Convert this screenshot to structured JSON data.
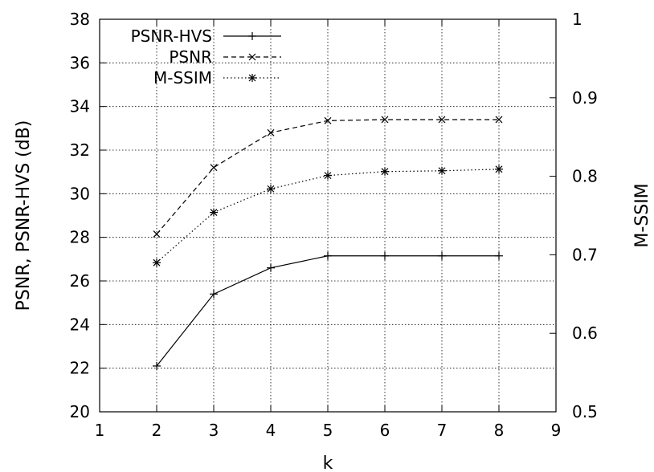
{
  "chart_data": {
    "type": "line",
    "title": "",
    "xlabel": "k",
    "ylabel": "PSNR, PSNR-HVS (dB)",
    "y2label": "M-SSIM",
    "xlim": [
      1,
      9
    ],
    "ylim": [
      20,
      38
    ],
    "y2lim": [
      0.5,
      1
    ],
    "xticks": [
      "1",
      "2",
      "3",
      "4",
      "5",
      "6",
      "7",
      "8",
      "9"
    ],
    "yticks": [
      "20",
      "22",
      "24",
      "26",
      "28",
      "30",
      "32",
      "34",
      "36",
      "38"
    ],
    "y2ticks": [
      "0.5",
      "0.6",
      "0.7",
      "0.8",
      "0.9",
      "1"
    ],
    "grid": true,
    "legend_position": "top-left",
    "x": [
      2,
      3,
      4,
      5,
      6,
      7,
      8
    ],
    "series": [
      {
        "name": "PSNR-HVS",
        "axis": "left",
        "marker": "plus",
        "dash": "solid",
        "values": [
          22.1,
          25.4,
          26.6,
          27.15,
          27.15,
          27.15,
          27.15
        ]
      },
      {
        "name": "PSNR",
        "axis": "left",
        "marker": "cross",
        "dash": "dashed",
        "values": [
          28.15,
          31.2,
          32.8,
          33.35,
          33.4,
          33.4,
          33.4
        ]
      },
      {
        "name": "M-SSIM",
        "axis": "right",
        "marker": "star",
        "dash": "dotted",
        "values": [
          0.69,
          0.754,
          0.784,
          0.801,
          0.806,
          0.807,
          0.809
        ]
      }
    ]
  }
}
